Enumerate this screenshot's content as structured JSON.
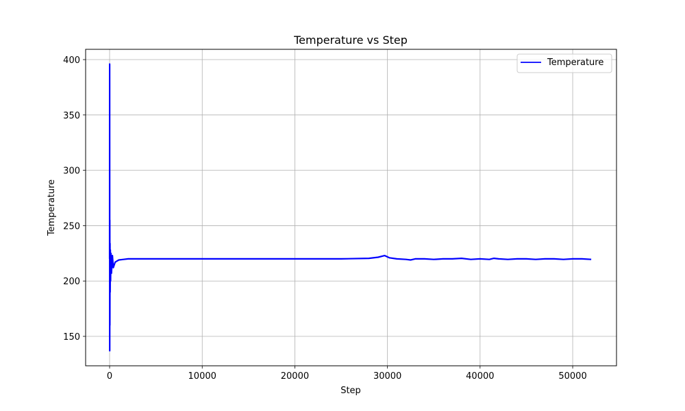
{
  "chart_data": {
    "type": "line",
    "title": "Temperature vs Step",
    "xlabel": "Step",
    "ylabel": "Temperature",
    "xlim": [
      -2590,
      54730
    ],
    "ylim": [
      123.4,
      409.3
    ],
    "xticks": [
      0,
      10000,
      20000,
      30000,
      40000,
      50000
    ],
    "xtick_labels": [
      "0",
      "10000",
      "20000",
      "30000",
      "40000",
      "50000"
    ],
    "yticks": [
      150,
      200,
      250,
      300,
      350,
      400
    ],
    "ytick_labels": [
      "150",
      "200",
      "250",
      "300",
      "350",
      "400"
    ],
    "grid": true,
    "legend": {
      "position": "upper right",
      "entries": [
        "Temperature"
      ]
    },
    "series": [
      {
        "name": "Temperature",
        "color": "#0000ff",
        "x": [
          0,
          5,
          10,
          20,
          30,
          40,
          60,
          80,
          100,
          150,
          200,
          300,
          400,
          600,
          800,
          1000,
          1500,
          2000,
          5000,
          10000,
          15000,
          20000,
          25000,
          28000,
          29000,
          29700,
          30200,
          31000,
          32000,
          32500,
          33000,
          34000,
          35000,
          36000,
          37000,
          38000,
          39000,
          40000,
          41000,
          41500,
          42000,
          43000,
          44000,
          45000,
          46000,
          47000,
          48000,
          49000,
          50000,
          51000,
          52000
        ],
        "y": [
          220,
          396,
          137,
          255,
          160,
          234,
          190,
          228,
          200,
          225,
          207,
          223,
          212,
          217,
          218,
          219,
          219.5,
          220,
          220,
          220,
          220,
          220,
          220,
          220.5,
          221.5,
          223,
          221,
          220,
          219.5,
          219,
          220,
          220,
          219.5,
          220,
          220,
          220.5,
          219.5,
          220,
          219.5,
          220.5,
          220,
          219.5,
          220,
          220,
          219.5,
          220,
          220,
          219.5,
          220,
          220,
          219.5
        ]
      }
    ]
  }
}
